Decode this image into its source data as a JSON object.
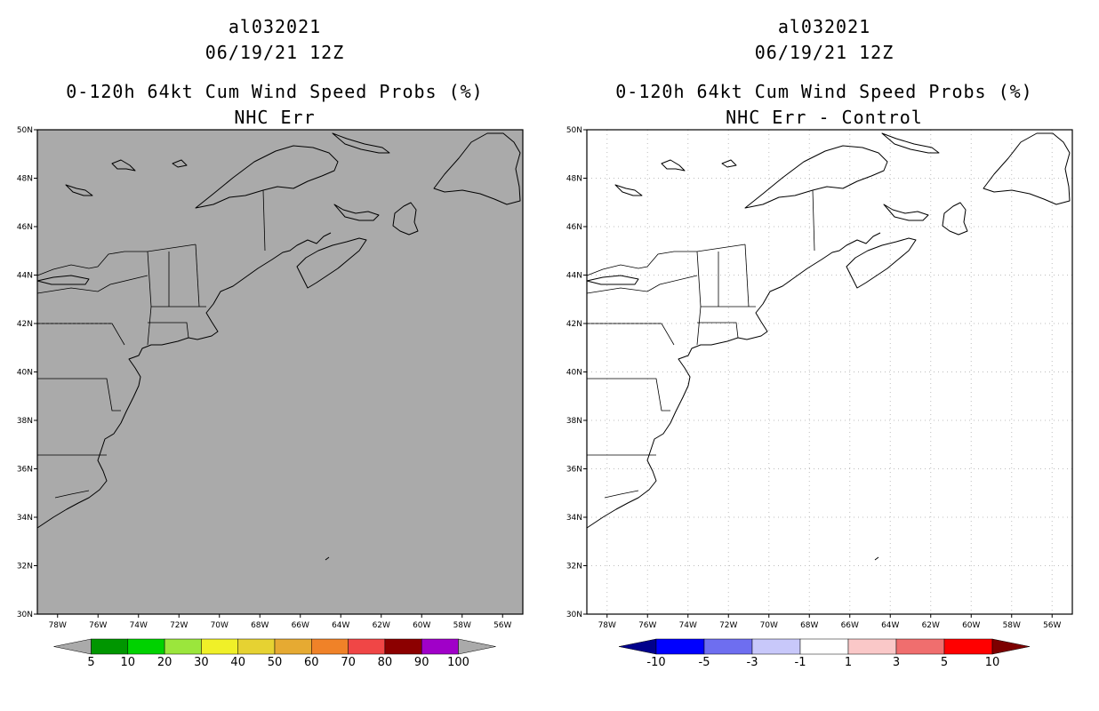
{
  "panels": [
    {
      "id": "left",
      "title_line1": "al032021",
      "title_line2": "06/19/21 12Z",
      "title_line3": "0-120h 64kt Cum Wind Speed Probs (%)",
      "title_line4": "NHC Err",
      "map_fill": "#aaaaaa",
      "colorbar": {
        "low_arrow_color": "#aaaaaa",
        "high_arrow_color": "#aaaaaa",
        "bins": [
          "#009600",
          "#00d200",
          "#9be63c",
          "#f0f028",
          "#e6d232",
          "#e6aa32",
          "#f08228",
          "#f04646",
          "#8c0000",
          "#a000c8"
        ],
        "labels": [
          "5",
          "10",
          "20",
          "30",
          "40",
          "50",
          "60",
          "70",
          "80",
          "90",
          "100"
        ]
      }
    },
    {
      "id": "right",
      "title_line1": "al032021",
      "title_line2": "06/19/21 12Z",
      "title_line3": "0-120h 64kt Cum Wind Speed Probs (%)",
      "title_line4": "NHC Err - Control",
      "map_fill": "#ffffff",
      "colorbar": {
        "low_arrow_color": "#00008c",
        "high_arrow_color": "#7d0000",
        "bins": [
          "#0000ff",
          "#6e6ef0",
          "#c8c8fa",
          "#ffffff",
          "#fac8c8",
          "#f06e6e",
          "#ff0000"
        ],
        "labels": [
          "-10",
          "-5",
          "-3",
          "-1",
          "1",
          "3",
          "5",
          "10"
        ]
      }
    }
  ],
  "lat_labels": [
    "50N",
    "48N",
    "46N",
    "44N",
    "42N",
    "40N",
    "38N",
    "36N",
    "34N",
    "32N",
    "30N"
  ],
  "lon_labels": [
    "78W",
    "76W",
    "74W",
    "72W",
    "70W",
    "68W",
    "66W",
    "64W",
    "62W",
    "60W",
    "58W",
    "56W"
  ]
}
